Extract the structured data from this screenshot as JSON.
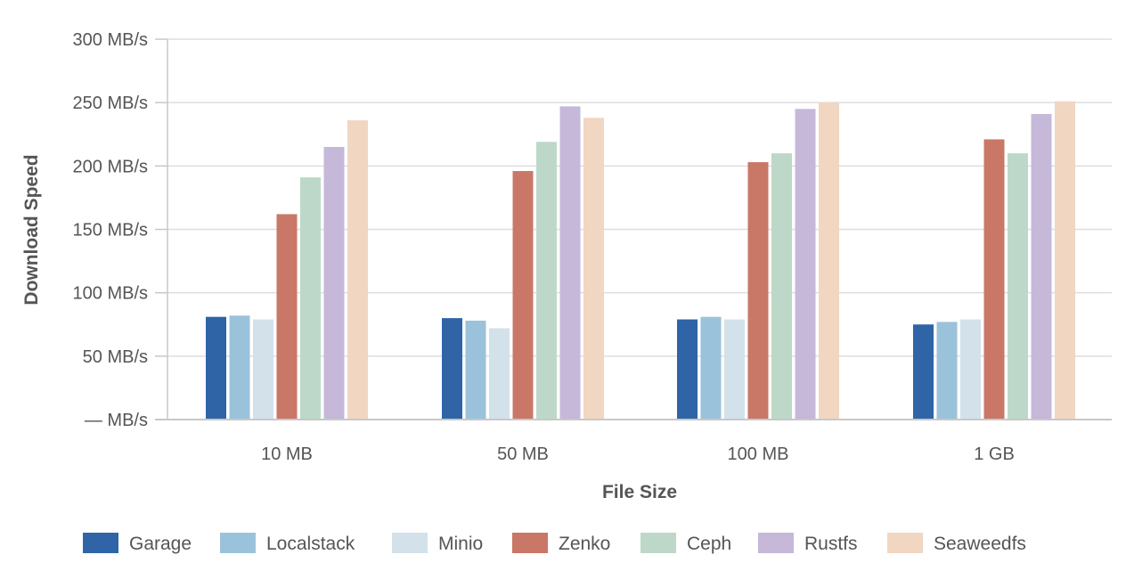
{
  "chart_data": {
    "type": "bar",
    "title": "",
    "xlabel": "File Size",
    "ylabel": "Download Speed",
    "ylim": [
      0,
      300
    ],
    "yticks": [
      0,
      50,
      100,
      150,
      200,
      250,
      300
    ],
    "ytick_labels": [
      "— MB/s",
      "50 MB/s",
      "100 MB/s",
      "150 MB/s",
      "200 MB/s",
      "250 MB/s",
      "300 MB/s"
    ],
    "grid": true,
    "legend_position": "bottom",
    "categories": [
      "10 MB",
      "50 MB",
      "100 MB",
      "1 GB"
    ],
    "series": [
      {
        "name": "Garage",
        "color": "#2f64a7",
        "values": [
          81,
          80,
          79,
          75
        ]
      },
      {
        "name": "Localstack",
        "color": "#9bc2db",
        "values": [
          82,
          78,
          81,
          77
        ]
      },
      {
        "name": "Minio",
        "color": "#d3e1ea",
        "values": [
          79,
          72,
          79,
          79
        ]
      },
      {
        "name": "Zenko",
        "color": "#c97767",
        "values": [
          162,
          196,
          203,
          221
        ]
      },
      {
        "name": "Ceph",
        "color": "#bdd8c8",
        "values": [
          191,
          219,
          210,
          210
        ]
      },
      {
        "name": "Rustfs",
        "color": "#c5b8d9",
        "values": [
          215,
          247,
          245,
          241
        ]
      },
      {
        "name": "Seaweedfs",
        "color": "#f1d6c2",
        "values": [
          236,
          238,
          250,
          251
        ]
      }
    ]
  }
}
